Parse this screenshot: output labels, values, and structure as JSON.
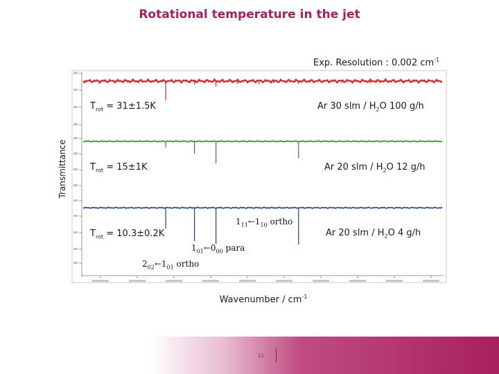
{
  "title": "Rotational temperature in the jet",
  "resolution": {
    "text": "Exp. Resolution : 0.002 cm",
    "sup": "-1"
  },
  "ylabel": "Transmittance",
  "xlabel": {
    "text": "Wavenumber / cm",
    "sup": "-1"
  },
  "spectra": [
    {
      "trot_main": "T",
      "trot_sub": "rot",
      "trot_value": " = 31±1.5K",
      "cond_pre": "Ar 30 slm / H",
      "cond_sub": "2",
      "cond_post": "O 100 g/h",
      "color": "#e8232a"
    },
    {
      "trot_main": "T",
      "trot_sub": "rot",
      "trot_value": " = 15±1K",
      "cond_pre": "Ar 20 slm / H",
      "cond_sub": "2",
      "cond_post": "O 12 g/h",
      "color": "#2a8a2a"
    },
    {
      "trot_main": "T",
      "trot_sub": "rot",
      "trot_value": " = 10.3±0.2K",
      "cond_pre": "Ar 20 slm / H",
      "cond_sub": "2",
      "cond_post": "O 4 g/h",
      "color": "#1f3b8c"
    }
  ],
  "transitions": [
    {
      "a": "1",
      "a_sub": "11",
      "arrow": "←",
      "b": "1",
      "b_sub": "10",
      "kind": " ortho"
    },
    {
      "a": "1",
      "a_sub": "01",
      "arrow": "←",
      "b": "0",
      "b_sub": "00",
      "kind": " para"
    },
    {
      "a": "2",
      "a_sub": "02",
      "arrow": "←",
      "b": "1",
      "b_sub": "01",
      "kind": " ortho"
    }
  ],
  "page_number": "21",
  "chart_data": {
    "type": "line",
    "title": "Rotational temperature in the jet",
    "xlabel": "Wavenumber / cm-1",
    "ylabel": "Transmittance",
    "x_unit": "cm-1",
    "series": [
      {
        "name": "Ar 30 slm / H2O 100 g/h",
        "color": "#e8232a",
        "baseline": 1.0,
        "lines": [
          {
            "x": 0.13,
            "depth": 0.03
          },
          {
            "x": 0.23,
            "depth": 0.28
          },
          {
            "x": 0.31,
            "depth": 0.05
          },
          {
            "x": 0.37,
            "depth": 0.08
          },
          {
            "x": 0.43,
            "depth": 0.04
          },
          {
            "x": 0.49,
            "depth": 0.05
          },
          {
            "x": 0.53,
            "depth": 0.03
          },
          {
            "x": 0.6,
            "depth": 0.04
          },
          {
            "x": 0.72,
            "depth": 0.03
          },
          {
            "x": 0.8,
            "depth": 0.03
          }
        ]
      },
      {
        "name": "Ar 20 slm / H2O 12 g/h",
        "color": "#2a8a2a",
        "baseline": 1.0,
        "lines": [
          {
            "x": 0.23,
            "depth": 0.09
          },
          {
            "x": 0.31,
            "depth": 0.18
          },
          {
            "x": 0.37,
            "depth": 0.32
          },
          {
            "x": 0.6,
            "depth": 0.24
          }
        ]
      },
      {
        "name": "Ar 20 slm / H2O 4 g/h",
        "color": "#1f3b8c",
        "baseline": 1.0,
        "lines": [
          {
            "x": 0.23,
            "depth": 0.3
          },
          {
            "x": 0.31,
            "depth": 0.48
          },
          {
            "x": 0.37,
            "depth": 0.52
          },
          {
            "x": 0.6,
            "depth": 0.53
          }
        ]
      }
    ]
  }
}
